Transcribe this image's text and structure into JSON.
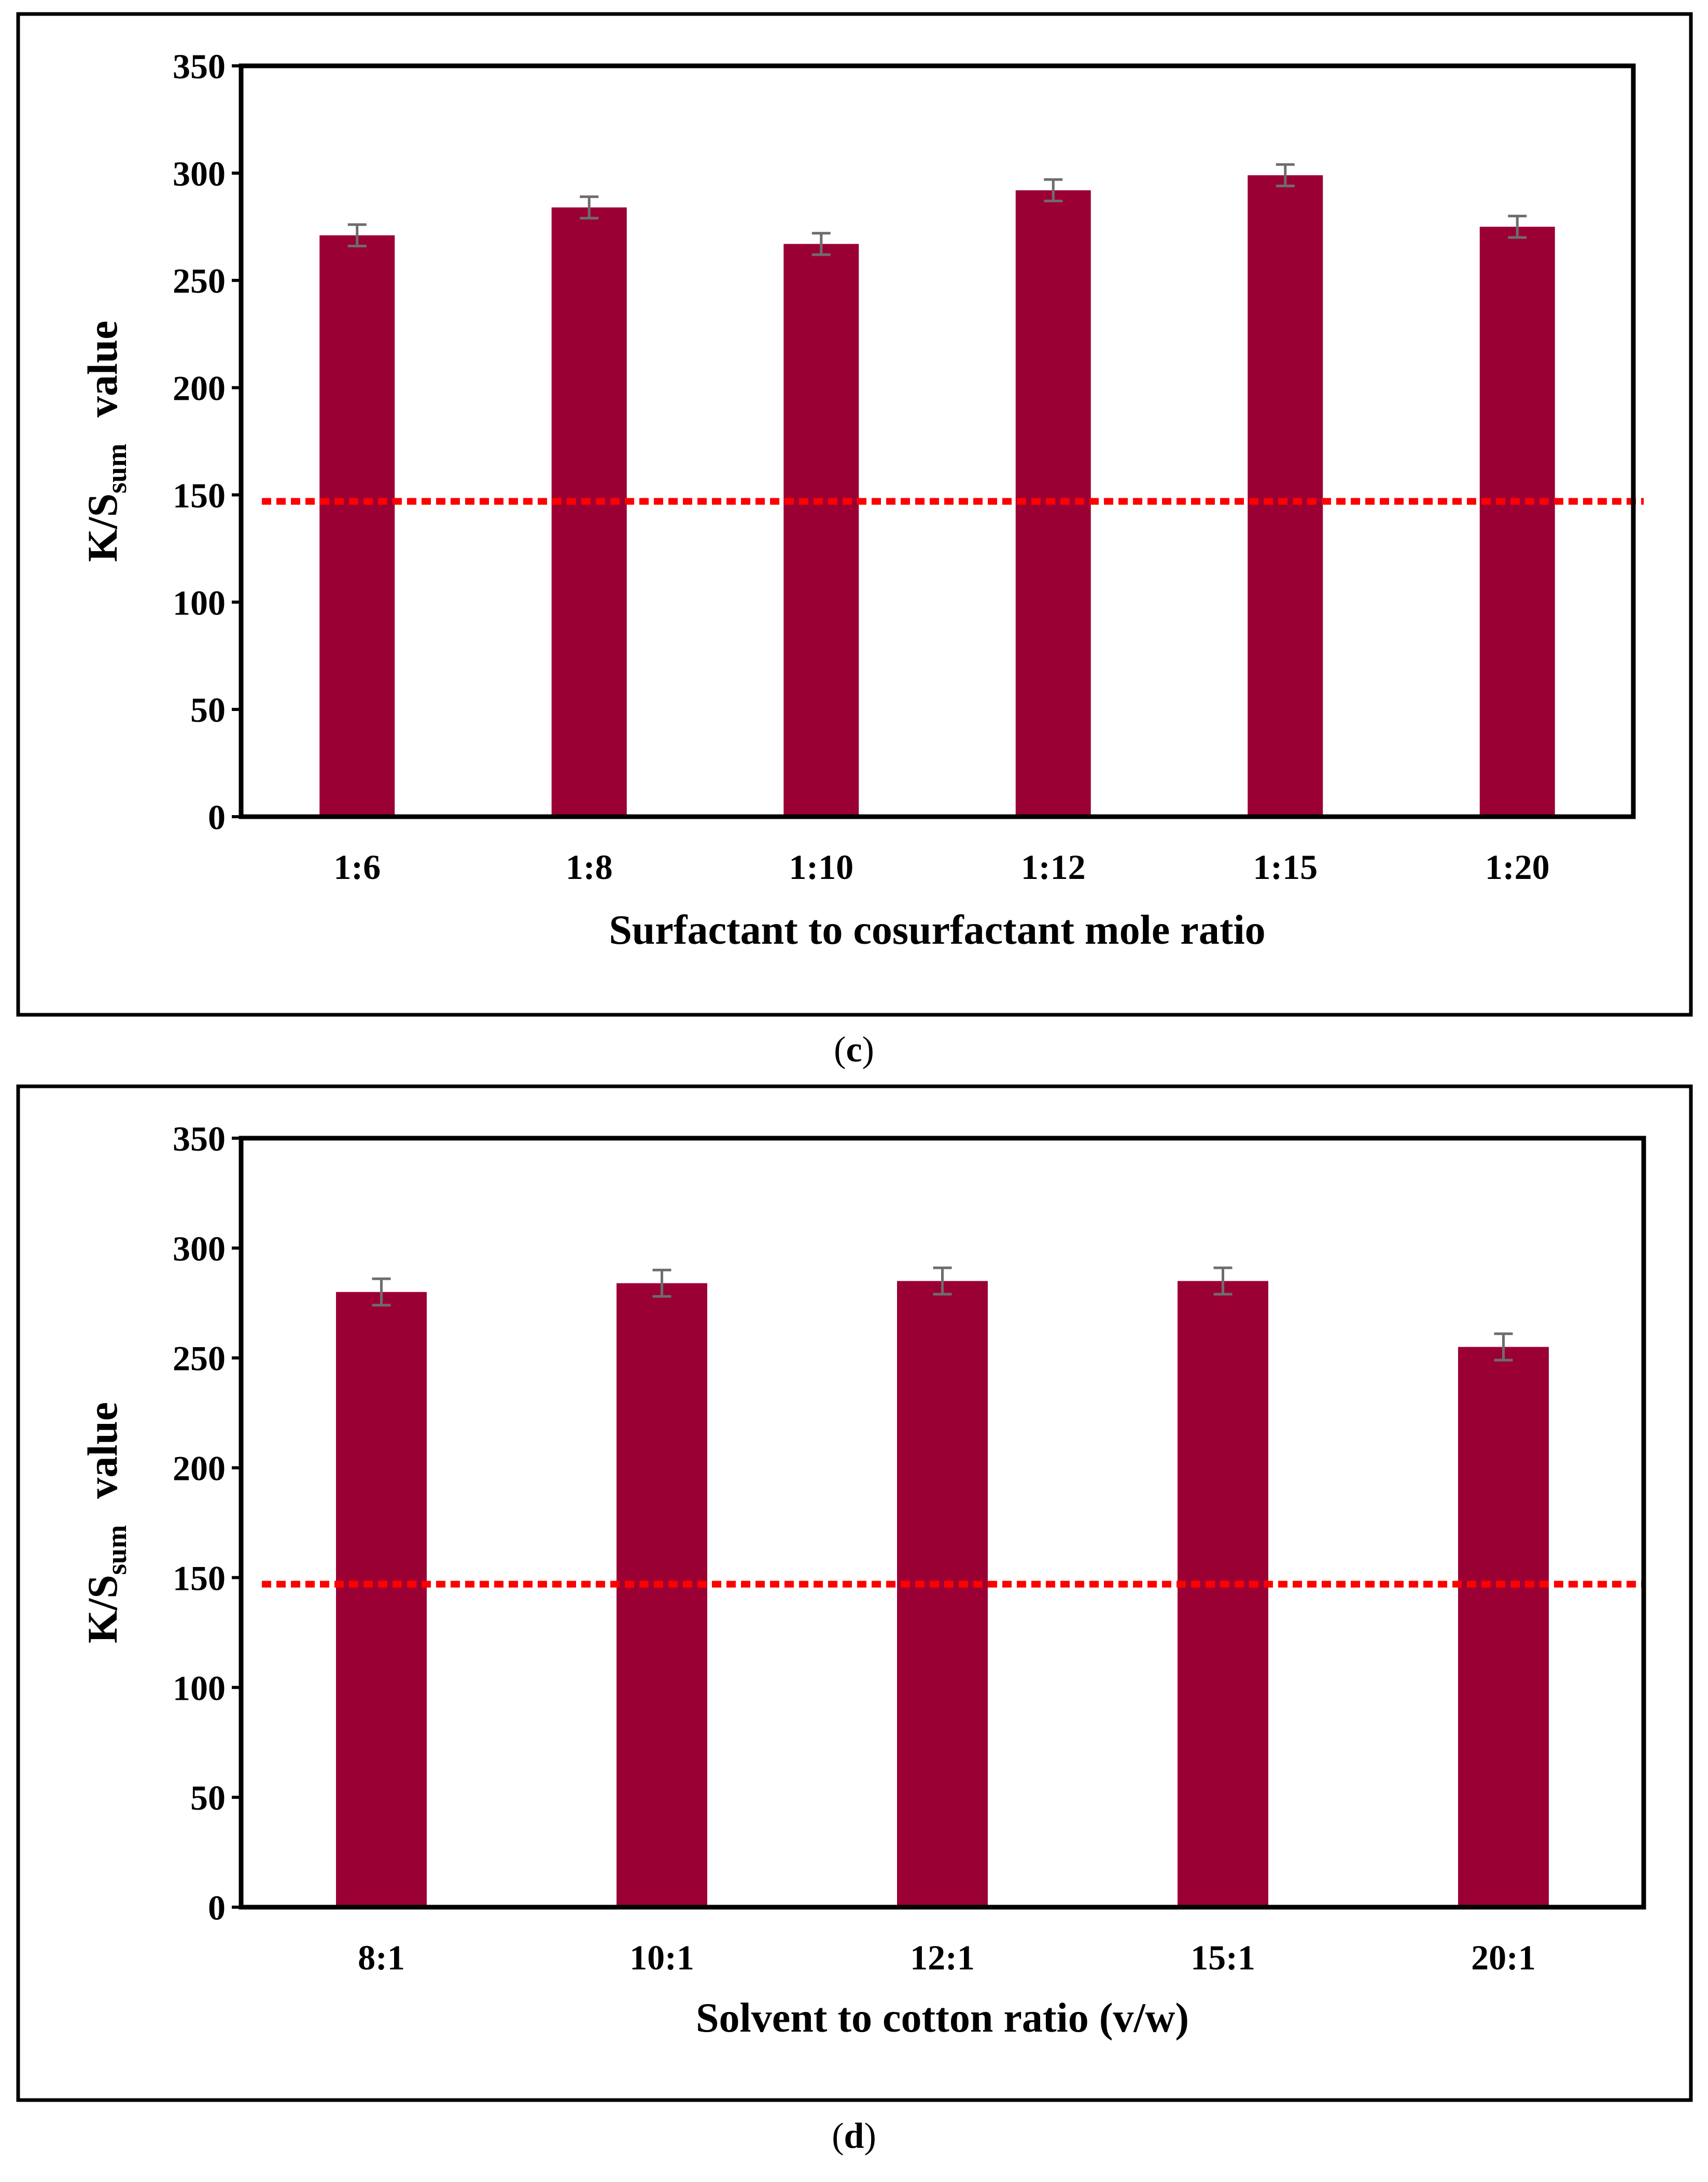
{
  "figures": [
    {
      "caption_letter": "c"
    },
    {
      "caption_letter": "d"
    }
  ],
  "chart_data": [
    {
      "type": "bar",
      "categories": [
        "1:6",
        "1:8",
        "1:10",
        "1:12",
        "1:15",
        "1:20"
      ],
      "values": [
        271,
        284,
        267,
        292,
        299,
        275
      ],
      "errors": [
        5,
        5,
        5,
        5,
        5,
        5
      ],
      "xlabel": "Surfactant to cosurfactant mole ratio",
      "ylabel_main": "K/S",
      "ylabel_sub": "sum",
      "ylabel_tail": "value",
      "ylim": [
        0,
        350
      ],
      "yticks": [
        "0",
        "50",
        "100",
        "150",
        "200",
        "250",
        "300",
        "350"
      ],
      "reference_line": 147,
      "bar_color": "#9b0034",
      "reference_color": "#ff0000",
      "error_color": "#6d6d6d"
    },
    {
      "type": "bar",
      "categories": [
        "8:1",
        "10:1",
        "12:1",
        "15:1",
        "20:1"
      ],
      "values": [
        280,
        284,
        285,
        285,
        255
      ],
      "errors": [
        6,
        6,
        6,
        6,
        6
      ],
      "xlabel": "Solvent to cotton ratio (v/w)",
      "ylabel_main": "K/S",
      "ylabel_sub": "sum",
      "ylabel_tail": "value",
      "ylim": [
        0,
        350
      ],
      "yticks": [
        "0",
        "50",
        "100",
        "150",
        "200",
        "250",
        "300",
        "350"
      ],
      "reference_line": 147,
      "bar_color": "#9b0034",
      "reference_color": "#ff0000",
      "error_color": "#6d6d6d"
    }
  ]
}
